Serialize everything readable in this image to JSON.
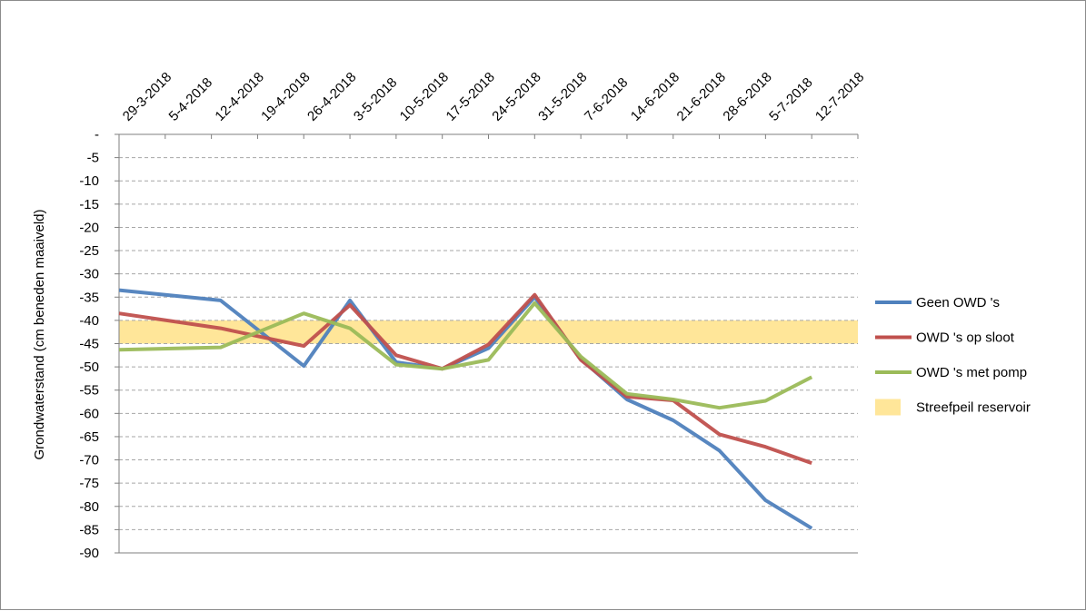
{
  "chart_data": {
    "type": "line",
    "ylabel": "Grondwaterstand (cm beneden maaiveld)",
    "ylim": [
      -90,
      0
    ],
    "yticks": [
      "-",
      "-5",
      "-10",
      "-15",
      "-20",
      "-25",
      "-30",
      "-35",
      "-40",
      "-45",
      "-50",
      "-55",
      "-60",
      "-65",
      "-70",
      "-75",
      "-80",
      "-85",
      "-90"
    ],
    "categories": [
      "29-3-2018",
      "5-4-2018",
      "12-4-2018",
      "19-4-2018",
      "26-4-2018",
      "3-5-2018",
      "10-5-2018",
      "17-5-2018",
      "24-5-2018",
      "31-5-2018",
      "7-6-2018",
      "14-6-2018",
      "21-6-2018",
      "28-6-2018",
      "5-7-2018",
      "12-7-2018"
    ],
    "x_axis_position": "top",
    "grid": "horizontal dashed",
    "legend_position": "right",
    "band": {
      "name": "Streefpeil reservoir",
      "from": -40,
      "to": -45,
      "color": "#FFE699"
    },
    "series": [
      {
        "name": "Geen OWD 's",
        "color": "#4F81BD",
        "points": [
          [
            0,
            -33.5
          ],
          [
            2.2,
            -35.7
          ],
          [
            4,
            -49.8
          ],
          [
            5,
            -35.7
          ],
          [
            6,
            -49
          ],
          [
            7,
            -50.4
          ],
          [
            8,
            -46
          ],
          [
            9,
            -35
          ],
          [
            10,
            -48.3
          ],
          [
            11,
            -57
          ],
          [
            12,
            -61.5
          ],
          [
            13,
            -68
          ],
          [
            14,
            -78.7
          ],
          [
            15,
            -84.7
          ]
        ]
      },
      {
        "name": "OWD 's op sloot",
        "color": "#C0504D",
        "points": [
          [
            0,
            -38.5
          ],
          [
            2.2,
            -41.7
          ],
          [
            4,
            -45.5
          ],
          [
            5,
            -36.7
          ],
          [
            6,
            -47.5
          ],
          [
            7,
            -50.4
          ],
          [
            8,
            -45.2
          ],
          [
            9,
            -34.5
          ],
          [
            10,
            -48.5
          ],
          [
            11,
            -56.4
          ],
          [
            12,
            -57.2
          ],
          [
            13,
            -64.5
          ],
          [
            14,
            -67.2
          ],
          [
            15,
            -70.7
          ]
        ]
      },
      {
        "name": "OWD 's met pomp",
        "color": "#9BBB59",
        "points": [
          [
            0,
            -46.3
          ],
          [
            2.2,
            -45.8
          ],
          [
            4,
            -38.5
          ],
          [
            5,
            -41.7
          ],
          [
            6,
            -49.5
          ],
          [
            7,
            -50.4
          ],
          [
            8,
            -48.5
          ],
          [
            9,
            -36.3
          ],
          [
            10,
            -47.8
          ],
          [
            11,
            -55.8
          ],
          [
            12,
            -57
          ],
          [
            13,
            -58.8
          ],
          [
            14,
            -57.3
          ],
          [
            15,
            -52.2
          ]
        ]
      }
    ]
  }
}
